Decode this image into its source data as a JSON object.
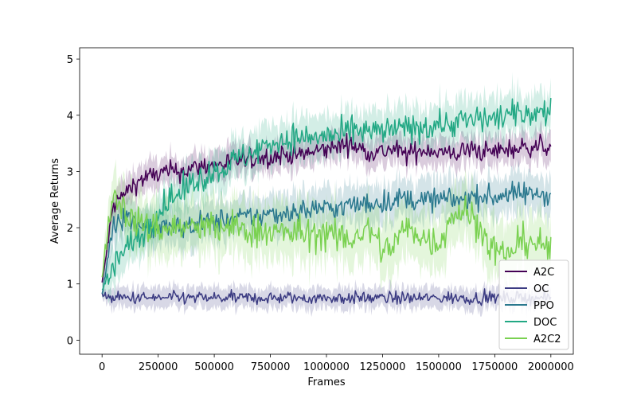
{
  "chart_data": {
    "type": "line",
    "title": "",
    "xlabel": "Frames",
    "ylabel": "Average Returns",
    "xlim": [
      -100000,
      2100000
    ],
    "ylim": [
      -0.25,
      5.2
    ],
    "xticks": [
      0,
      250000,
      500000,
      750000,
      1000000,
      1250000,
      1500000,
      1750000,
      2000000
    ],
    "yticks": [
      0,
      1,
      2,
      3,
      4,
      5
    ],
    "grid": false,
    "legend_position": "lower-right",
    "colors": {
      "A2C": "#440154",
      "OC": "#3b3b82",
      "PPO": "#2a788e",
      "DOC": "#22a884",
      "A2C2": "#7ad151"
    },
    "x": [
      0,
      50000,
      100000,
      150000,
      200000,
      250000,
      300000,
      350000,
      400000,
      450000,
      500000,
      550000,
      600000,
      650000,
      700000,
      750000,
      800000,
      850000,
      900000,
      950000,
      1000000,
      1050000,
      1100000,
      1150000,
      1200000,
      1250000,
      1300000,
      1350000,
      1400000,
      1450000,
      1500000,
      1550000,
      1600000,
      1650000,
      1700000,
      1750000,
      1800000,
      1850000,
      1900000,
      1950000,
      2000000
    ],
    "series": [
      {
        "name": "A2C",
        "values": [
          1.0,
          2.4,
          2.6,
          2.8,
          2.9,
          2.95,
          3.0,
          3.0,
          3.05,
          3.1,
          3.1,
          3.15,
          3.2,
          3.2,
          3.25,
          3.25,
          3.3,
          3.3,
          3.3,
          3.35,
          3.4,
          3.45,
          3.5,
          3.4,
          3.35,
          3.35,
          3.4,
          3.3,
          3.35,
          3.4,
          3.35,
          3.3,
          3.35,
          3.4,
          3.35,
          3.35,
          3.4,
          3.4,
          3.45,
          3.45,
          3.45
        ]
      },
      {
        "name": "OC",
        "values": [
          0.8,
          0.75,
          0.75,
          0.75,
          0.75,
          0.75,
          0.75,
          0.75,
          0.75,
          0.75,
          0.75,
          0.75,
          0.75,
          0.75,
          0.75,
          0.75,
          0.75,
          0.75,
          0.75,
          0.75,
          0.75,
          0.75,
          0.75,
          0.75,
          0.75,
          0.75,
          0.75,
          0.75,
          0.75,
          0.75,
          0.75,
          0.75,
          0.75,
          0.75,
          0.75,
          0.75,
          0.75,
          0.75,
          0.75,
          0.75,
          0.75
        ]
      },
      {
        "name": "PPO",
        "values": [
          0.8,
          2.1,
          2.2,
          2.1,
          2.0,
          2.0,
          2.0,
          2.0,
          2.05,
          2.1,
          2.1,
          2.15,
          2.15,
          2.2,
          2.2,
          2.25,
          2.25,
          2.3,
          2.3,
          2.35,
          2.35,
          2.35,
          2.4,
          2.4,
          2.45,
          2.45,
          2.5,
          2.5,
          2.5,
          2.5,
          2.5,
          2.5,
          2.5,
          2.55,
          2.55,
          2.55,
          2.6,
          2.6,
          2.6,
          2.6,
          2.6
        ]
      },
      {
        "name": "DOC",
        "values": [
          0.9,
          1.3,
          1.6,
          1.8,
          2.0,
          2.3,
          2.5,
          2.6,
          2.8,
          2.9,
          3.0,
          3.1,
          3.2,
          3.3,
          3.4,
          3.5,
          3.55,
          3.6,
          3.6,
          3.6,
          3.65,
          3.6,
          3.7,
          3.7,
          3.7,
          3.7,
          3.75,
          3.75,
          3.8,
          3.8,
          3.85,
          3.85,
          3.9,
          3.9,
          3.95,
          3.95,
          4.0,
          4.0,
          4.05,
          4.05,
          4.05
        ]
      },
      {
        "name": "A2C2",
        "values": [
          1.2,
          2.6,
          2.3,
          2.1,
          2.0,
          2.0,
          2.0,
          2.0,
          2.0,
          2.0,
          2.0,
          2.0,
          2.0,
          1.95,
          1.95,
          1.95,
          1.9,
          1.9,
          1.9,
          1.9,
          1.9,
          1.8,
          1.8,
          1.9,
          1.95,
          1.6,
          1.7,
          2.0,
          1.9,
          1.8,
          1.7,
          2.2,
          2.3,
          2.2,
          1.9,
          1.6,
          1.5,
          1.7,
          1.8,
          1.7,
          1.6
        ]
      }
    ]
  }
}
